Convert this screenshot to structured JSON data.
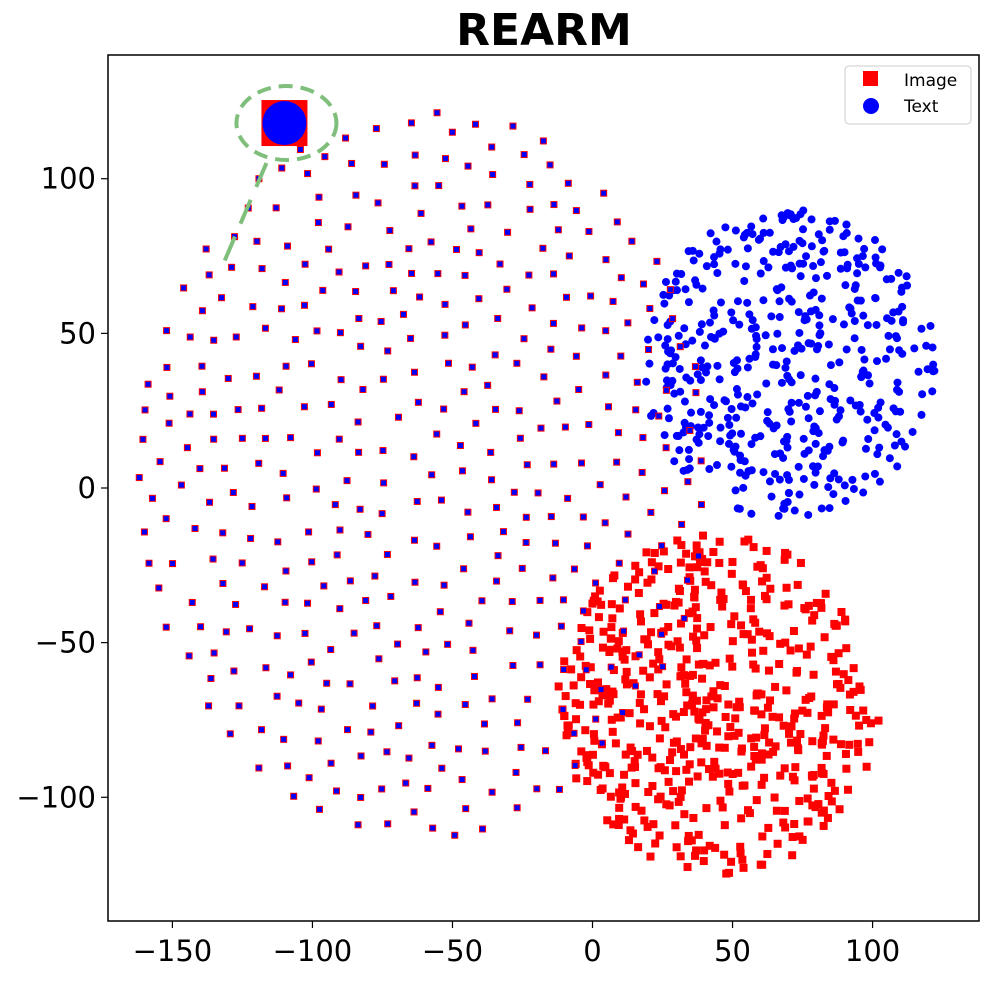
{
  "chart_data": {
    "type": "scatter",
    "title": "REARM",
    "xlabel": "",
    "ylabel": "",
    "xlim": [
      -173,
      138
    ],
    "ylim": [
      -140,
      140
    ],
    "xticks": [
      -150,
      -100,
      -50,
      0,
      50,
      100
    ],
    "yticks": [
      -100,
      -50,
      0,
      50,
      100
    ],
    "xtick_labels": [
      "−150",
      "−100",
      "−50",
      "0",
      "50",
      "100"
    ],
    "ytick_labels": [
      "−100",
      "−50",
      "0",
      "50",
      "100"
    ],
    "grid": false,
    "legend_position": "top-right",
    "colors": {
      "image": "#ff0000",
      "text": "#0000ff",
      "highlight": "#7fbf7b"
    },
    "series": [
      {
        "name": "Image",
        "marker": "square",
        "color": "#ff0000",
        "clusters": [
          {
            "region": "lower-right cluster",
            "center": [
              45,
              -70
            ],
            "radius": 55,
            "count": 560,
            "note": "image-only points"
          },
          {
            "region": "left cluster (overlapping with text)",
            "center": [
              -60,
              5
            ],
            "radius": 100,
            "count": 420,
            "note": "image and text markers overlap"
          }
        ]
      },
      {
        "name": "Text",
        "marker": "circle",
        "color": "#0000ff",
        "clusters": [
          {
            "region": "upper-right cluster",
            "center": [
              70,
              40
            ],
            "radius": 50,
            "count": 470,
            "note": "text-only points"
          },
          {
            "region": "left cluster (overlapping with image)",
            "center": [
              -60,
              5
            ],
            "radius": 100,
            "count": 420,
            "note": "drawn on top of image markers"
          }
        ]
      }
    ],
    "annotations": [
      {
        "type": "dashed-circle-callout",
        "x": -110,
        "y": 118,
        "points_to": [
          -133,
          70
        ],
        "color": "#7fbf7b"
      }
    ]
  }
}
